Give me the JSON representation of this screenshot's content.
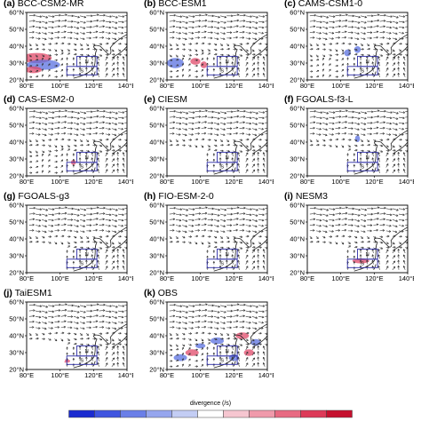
{
  "panels": [
    {
      "id": "(a)",
      "name": "BCC-CSM2-MR"
    },
    {
      "id": "(b)",
      "name": "BCC-ESM1"
    },
    {
      "id": "(c)",
      "name": "CAMS-CSM1-0"
    },
    {
      "id": "(d)",
      "name": "CAS-ESM2-0"
    },
    {
      "id": "(e)",
      "name": "CIESM"
    },
    {
      "id": "(f)",
      "name": "FGOALS-f3-L"
    },
    {
      "id": "(g)",
      "name": "FGOALS-g3"
    },
    {
      "id": "(h)",
      "name": "FIO-ESM-2-0"
    },
    {
      "id": "(i)",
      "name": "NESM3"
    },
    {
      "id": "(j)",
      "name": "TaiESM1"
    },
    {
      "id": "(k)",
      "name": "OBS"
    }
  ],
  "axes": {
    "lat_labels": [
      "60°N",
      "50°N",
      "40°N",
      "30°N",
      "20°N"
    ],
    "lon_labels": [
      "80°E",
      "100°E",
      "120°E",
      "140°E"
    ]
  },
  "box_labels": {
    "north": "N",
    "south": "S"
  },
  "colorbar": {
    "label": "divergence (/s)",
    "colors": [
      "#1a2bd0",
      "#3f55e0",
      "#6a7fe8",
      "#96a6ee",
      "#c3cdf4",
      "#ffffff",
      "#f6c6d0",
      "#f09aab",
      "#e86a82",
      "#dd3a58",
      "#c5102e"
    ]
  },
  "colors": {
    "box": "#2f2fa8",
    "vector": "#333333",
    "negative": "#5a70e0",
    "positive": "#e04a6a"
  }
}
